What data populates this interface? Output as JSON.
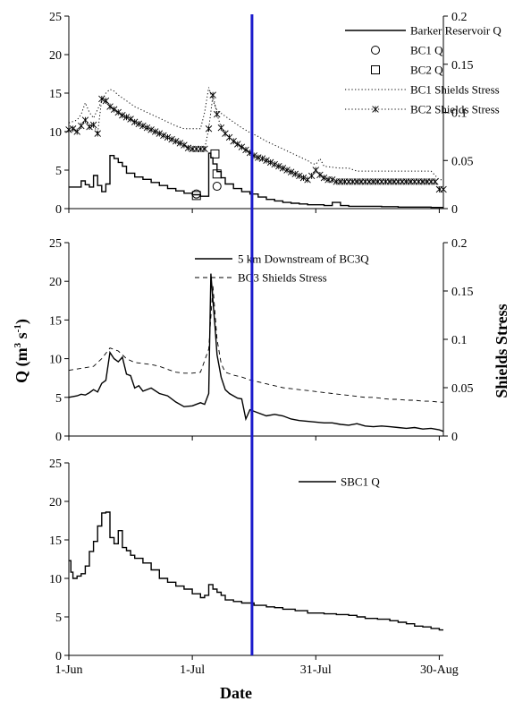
{
  "chart_data": {
    "type": "line",
    "xlabel": "Date",
    "ylabel_main": "Q",
    "ylabel_unit": "(m",
    "ylabel_sup1": "3",
    "ylabel_mid": " s",
    "ylabel_sup2": "-1",
    "ylabel_end": ")",
    "y2label": "Shields Stress",
    "x_axis": {
      "min_day": 0,
      "max_day": 91,
      "ticks": [
        {
          "day": 0,
          "label": "1-Jun"
        },
        {
          "day": 30,
          "label": "1-Jul"
        },
        {
          "day": 60,
          "label": "31-Jul"
        },
        {
          "day": 90,
          "label": "30-Aug"
        }
      ]
    },
    "event_line": {
      "day": 44.5,
      "color": "#1a1acc"
    },
    "panels": [
      {
        "ylim": [
          0,
          25
        ],
        "yticks": [
          "0",
          "5",
          "10",
          "15",
          "20",
          "25"
        ],
        "y2lim": [
          0,
          0.2
        ],
        "y2ticks": [
          "0",
          "0.05",
          "0.1",
          "0.15",
          "0.2"
        ],
        "legend": [
          "Barker Reservoir Q",
          "BC1 Q",
          "BC2 Q",
          "BC1 Shields Stress",
          "BC2 Shields Stress"
        ],
        "series": [
          {
            "name": "Barker Reservoir Q",
            "axis": "left",
            "style": "step",
            "x": [
              0,
              3,
              4,
              5,
              6,
              7,
              8,
              9,
              10,
              11,
              12,
              13,
              14,
              16,
              18,
              20,
              22,
              24,
              26,
              28,
              30,
              32,
              33,
              34,
              34.5,
              35,
              36,
              37,
              38,
              40,
              42,
              44,
              46,
              48,
              50,
              52,
              54,
              56,
              58,
              60,
              62,
              64,
              66,
              68,
              70,
              72,
              74,
              76,
              78,
              80,
              82,
              84,
              86,
              88,
              90,
              91
            ],
            "y": [
              2.8,
              3.6,
              3.1,
              2.8,
              4.3,
              3.0,
              2.2,
              3.2,
              6.9,
              6.5,
              6.0,
              5.5,
              4.6,
              4.1,
              3.8,
              3.4,
              3.0,
              2.6,
              2.3,
              2.0,
              1.8,
              1.6,
              1.6,
              7.2,
              6.6,
              5.8,
              4.8,
              4.0,
              3.2,
              2.6,
              2.2,
              1.9,
              1.5,
              1.2,
              1.0,
              0.8,
              0.7,
              0.6,
              0.5,
              0.5,
              0.4,
              0.8,
              0.4,
              0.3,
              0.3,
              0.3,
              0.3,
              0.25,
              0.25,
              0.2,
              0.2,
              0.2,
              0.2,
              0.15,
              0.15,
              0.15
            ]
          },
          {
            "name": "BC1 Q",
            "axis": "left",
            "style": "circle",
            "x": [
              31,
              36
            ],
            "y": [
              1.9,
              2.9
            ]
          },
          {
            "name": "BC2 Q",
            "axis": "left",
            "style": "square",
            "x": [
              31,
              35.5,
              36
            ],
            "y": [
              1.7,
              7.1,
              4.5
            ]
          },
          {
            "name": "BC1 Shields Stress",
            "axis": "right",
            "style": "dotted",
            "x": [
              0,
              2,
              3,
              4,
              5,
              6,
              8,
              9,
              10,
              11,
              12,
              14,
              16,
              18,
              20,
              22,
              24,
              26,
              28,
              30,
              32,
              33,
              34,
              35,
              36,
              38,
              40,
              42,
              44,
              46,
              48,
              50,
              52,
              54,
              56,
              58,
              59,
              60,
              61,
              62,
              64,
              66,
              68,
              70,
              72,
              74,
              76,
              78,
              80,
              82,
              84,
              86,
              88,
              90,
              91
            ],
            "y": [
              0.089,
              0.092,
              0.098,
              0.11,
              0.1,
              0.094,
              0.112,
              0.12,
              0.124,
              0.122,
              0.118,
              0.112,
              0.106,
              0.102,
              0.098,
              0.094,
              0.09,
              0.086,
              0.083,
              0.083,
              0.083,
              0.1,
              0.126,
              0.112,
              0.102,
              0.096,
              0.09,
              0.084,
              0.079,
              0.075,
              0.07,
              0.066,
              0.062,
              0.058,
              0.054,
              0.05,
              0.047,
              0.046,
              0.052,
              0.044,
              0.043,
              0.042,
              0.042,
              0.039,
              0.039,
              0.039,
              0.039,
              0.039,
              0.039,
              0.039,
              0.039,
              0.039,
              0.039,
              0.03,
              0.03
            ]
          },
          {
            "name": "BC2 Shields Stress",
            "axis": "right",
            "style": "star",
            "x": [
              0,
              1,
              2,
              3,
              4,
              5,
              6,
              7,
              8,
              9,
              10,
              11,
              12,
              13,
              14,
              15,
              16,
              17,
              18,
              19,
              20,
              21,
              22,
              23,
              24,
              25,
              26,
              27,
              28,
              29,
              30,
              31,
              32,
              33,
              34,
              35,
              36,
              37,
              38,
              39,
              40,
              41,
              42,
              43,
              44,
              45,
              46,
              47,
              48,
              49,
              50,
              51,
              52,
              53,
              54,
              55,
              56,
              57,
              58,
              59,
              60,
              61,
              62,
              63,
              64,
              65,
              66,
              67,
              68,
              69,
              70,
              71,
              72,
              73,
              74,
              75,
              76,
              77,
              78,
              79,
              80,
              81,
              82,
              83,
              84,
              85,
              86,
              87,
              88,
              89,
              90,
              91
            ],
            "y": [
              0.082,
              0.083,
              0.08,
              0.086,
              0.092,
              0.085,
              0.087,
              0.078,
              0.114,
              0.112,
              0.106,
              0.103,
              0.1,
              0.097,
              0.095,
              0.093,
              0.09,
              0.088,
              0.086,
              0.084,
              0.082,
              0.08,
              0.078,
              0.076,
              0.074,
              0.072,
              0.07,
              0.068,
              0.066,
              0.063,
              0.062,
              0.062,
              0.062,
              0.062,
              0.083,
              0.118,
              0.098,
              0.084,
              0.078,
              0.074,
              0.07,
              0.067,
              0.064,
              0.061,
              0.058,
              0.055,
              0.053,
              0.052,
              0.05,
              0.048,
              0.046,
              0.044,
              0.042,
              0.04,
              0.038,
              0.036,
              0.034,
              0.032,
              0.03,
              0.034,
              0.04,
              0.035,
              0.032,
              0.03,
              0.03,
              0.028,
              0.028,
              0.028,
              0.028,
              0.028,
              0.028,
              0.028,
              0.028,
              0.028,
              0.028,
              0.028,
              0.028,
              0.028,
              0.028,
              0.028,
              0.028,
              0.028,
              0.028,
              0.028,
              0.028,
              0.028,
              0.028,
              0.028,
              0.028,
              0.028,
              0.02,
              0.02
            ]
          }
        ]
      },
      {
        "ylim": [
          0,
          25
        ],
        "yticks": [
          "0",
          "5",
          "10",
          "15",
          "20",
          "25"
        ],
        "y2lim": [
          0,
          0.2
        ],
        "y2ticks": [
          "0",
          "0.05",
          "0.1",
          "0.15",
          "0.2"
        ],
        "legend": [
          "5 km Downstream of BC3Q",
          "BC3 Shields Stress"
        ],
        "series": [
          {
            "name": "5 km Downstream of BC3Q",
            "axis": "left",
            "style": "solid-noisy",
            "x": [
              0,
              2,
              3,
              4,
              5,
              6,
              7,
              8,
              9,
              10,
              11,
              12,
              13,
              14,
              15,
              16,
              17,
              18,
              20,
              22,
              24,
              26,
              28,
              30,
              32,
              33,
              34,
              34.5,
              35,
              35.5,
              36,
              37,
              38,
              39,
              40,
              41,
              42,
              43,
              44,
              46,
              48,
              50,
              52,
              54,
              56,
              58,
              60,
              62,
              64,
              66,
              68,
              70,
              72,
              74,
              76,
              78,
              80,
              82,
              84,
              86,
              88,
              90,
              91
            ],
            "y": [
              5,
              5.2,
              5.4,
              5.3,
              5.6,
              6,
              5.7,
              6.8,
              7.2,
              10.8,
              10,
              9.6,
              10.2,
              8,
              7.8,
              6.2,
              6.5,
              5.8,
              6.2,
              5.5,
              5.2,
              4.4,
              3.8,
              3.9,
              4.3,
              4.1,
              5.5,
              21,
              17.5,
              14.2,
              10.5,
              7.6,
              6,
              5.5,
              5.2,
              4.9,
              4.8,
              2.2,
              3.4,
              3.0,
              2.6,
              2.8,
              2.6,
              2.2,
              2.0,
              1.9,
              1.8,
              1.7,
              1.7,
              1.5,
              1.4,
              1.6,
              1.3,
              1.2,
              1.3,
              1.2,
              1.1,
              1.0,
              1.1,
              0.9,
              1.0,
              0.8,
              0.6
            ]
          },
          {
            "name": "BC3 Shields Stress",
            "axis": "right",
            "style": "dashed",
            "x": [
              0,
              3,
              6,
              8,
              10,
              12,
              14,
              16,
              18,
              20,
              22,
              24,
              26,
              28,
              30,
              32,
              34,
              35,
              36,
              37,
              38,
              40,
              42,
              44,
              46,
              48,
              50,
              52,
              54,
              56,
              58,
              60,
              62,
              64,
              66,
              68,
              70,
              72,
              74,
              76,
              78,
              80,
              82,
              84,
              86,
              88,
              90,
              91
            ],
            "y": [
              0.068,
              0.07,
              0.072,
              0.08,
              0.091,
              0.088,
              0.08,
              0.076,
              0.075,
              0.074,
              0.072,
              0.069,
              0.066,
              0.065,
              0.065,
              0.066,
              0.09,
              0.155,
              0.1,
              0.075,
              0.066,
              0.063,
              0.061,
              0.058,
              0.056,
              0.054,
              0.052,
              0.05,
              0.049,
              0.048,
              0.047,
              0.046,
              0.045,
              0.044,
              0.043,
              0.042,
              0.041,
              0.04,
              0.04,
              0.039,
              0.038,
              0.038,
              0.037,
              0.037,
              0.036,
              0.036,
              0.035,
              0.035
            ]
          }
        ]
      },
      {
        "ylim": [
          0,
          25
        ],
        "yticks": [
          "0",
          "5",
          "10",
          "15",
          "20",
          "25"
        ],
        "legend": [
          "SBC1 Q"
        ],
        "series": [
          {
            "name": "SBC1 Q",
            "axis": "left",
            "style": "step",
            "x": [
              0,
              0.5,
              1,
              2,
              3,
              4,
              5,
              6,
              7,
              8,
              9,
              10,
              11,
              12,
              13,
              14,
              15,
              16,
              18,
              20,
              22,
              24,
              26,
              28,
              30,
              32,
              33,
              34,
              35,
              36,
              37,
              38,
              40,
              42,
              45,
              48,
              50,
              52,
              55,
              58,
              60,
              62,
              65,
              68,
              70,
              72,
              75,
              78,
              80,
              82,
              84,
              86,
              88,
              90,
              91
            ],
            "y": [
              12.3,
              10.8,
              10.0,
              10.3,
              10.6,
              11.6,
              13.5,
              14.8,
              16.8,
              18.5,
              18.6,
              15.3,
              14.5,
              16.2,
              14.0,
              13.6,
              13.0,
              12.6,
              12.0,
              11.1,
              10.0,
              9.5,
              9.0,
              8.6,
              8.0,
              7.5,
              7.8,
              9.2,
              8.6,
              8.2,
              7.8,
              7.2,
              7.0,
              6.8,
              6.5,
              6.3,
              6.2,
              6.0,
              5.8,
              5.5,
              5.5,
              5.4,
              5.3,
              5.2,
              5.0,
              4.8,
              4.7,
              4.5,
              4.3,
              4.1,
              3.8,
              3.7,
              3.5,
              3.3,
              3.3
            ]
          }
        ]
      }
    ]
  }
}
